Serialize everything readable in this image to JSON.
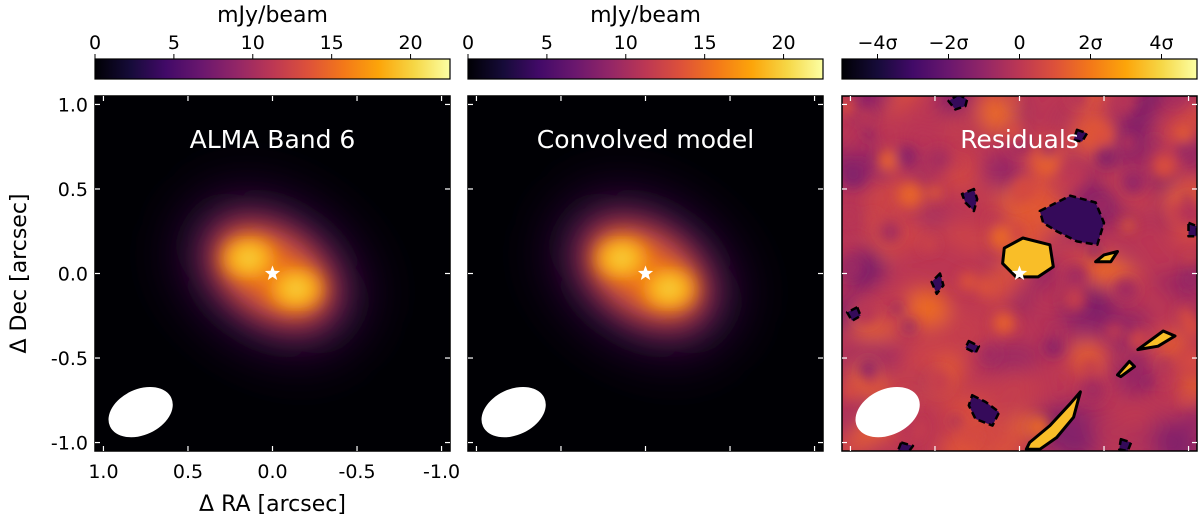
{
  "chart_data": [
    {
      "type": "heatmap",
      "panel_label": "ALMA Band 6",
      "colormap": "inferno",
      "colorbar": {
        "label": "mJy/beam",
        "range": [
          0,
          22.5
        ],
        "ticks": [
          0,
          5,
          10,
          15,
          20
        ],
        "tick_labels": [
          "0",
          "5",
          "10",
          "15",
          "20"
        ]
      },
      "xlabel": "Δ RA [arcsec]",
      "ylabel": "Δ Dec [arcsec]",
      "xlim": [
        1.05,
        -1.05
      ],
      "ylim": [
        -1.05,
        1.05
      ],
      "x_ticks": [
        1.0,
        0.5,
        0.0,
        -0.5,
        -1.0
      ],
      "x_tick_labels": [
        "1.0",
        "0.5",
        "0.0",
        "-0.5",
        "-1.0"
      ],
      "y_ticks": [
        1.0,
        0.5,
        0.0,
        -0.5,
        -1.0
      ],
      "y_tick_labels": [
        "1.0",
        "0.5",
        "0.0",
        "-0.5",
        "-1.0"
      ],
      "emission_peaks": [
        {
          "x": 0.14,
          "y": 0.09,
          "value": 22
        },
        {
          "x": -0.14,
          "y": -0.09,
          "value": 22
        }
      ],
      "star_position": {
        "x": 0.0,
        "y": 0.0
      },
      "beam": {
        "x": 0.78,
        "y": -0.82,
        "major": 0.4,
        "minor": 0.27,
        "pa_deg": 25
      }
    },
    {
      "type": "heatmap",
      "panel_label": "Convolved model",
      "colormap": "inferno",
      "colorbar": {
        "label": "mJy/beam",
        "range": [
          0,
          22.5
        ],
        "ticks": [
          0,
          5,
          10,
          15,
          20
        ],
        "tick_labels": [
          "0",
          "5",
          "10",
          "15",
          "20"
        ]
      },
      "xlim": [
        1.05,
        -1.05
      ],
      "ylim": [
        -1.05,
        1.05
      ],
      "emission_peaks": [
        {
          "x": 0.14,
          "y": 0.09,
          "value": 22
        },
        {
          "x": -0.14,
          "y": -0.09,
          "value": 22
        }
      ],
      "star_position": {
        "x": 0.0,
        "y": 0.0
      },
      "beam": {
        "x": 0.78,
        "y": -0.82,
        "major": 0.4,
        "minor": 0.27,
        "pa_deg": 25
      }
    },
    {
      "type": "heatmap",
      "panel_label": "Residuals",
      "colormap": "inferno",
      "colorbar": {
        "label": "",
        "range": [
          -5,
          5
        ],
        "ticks": [
          -4,
          -2,
          0,
          2,
          4
        ],
        "tick_labels": [
          "−4σ",
          "−2σ",
          "0",
          "2σ",
          "4σ"
        ]
      },
      "xlim": [
        1.05,
        -1.05
      ],
      "ylim": [
        -1.05,
        1.05
      ],
      "contour_levels_sigma": [
        -3,
        3
      ],
      "positive_contours": [
        {
          "x": [
            0.09,
            -0.02,
            -0.18,
            -0.2,
            -0.11,
            0.02,
            0.1,
            0.09
          ],
          "y": [
            0.15,
            0.21,
            0.17,
            0.04,
            -0.02,
            -0.02,
            0.06,
            0.15
          ]
        },
        {
          "x": [
            -0.45,
            -0.5,
            -0.58,
            -0.54,
            -0.45
          ],
          "y": [
            0.07,
            0.11,
            0.13,
            0.07,
            0.07
          ]
        },
        {
          "x": [
            -0.7,
            -0.85,
            -0.92,
            -0.82,
            -0.7
          ],
          "y": [
            -0.45,
            -0.34,
            -0.37,
            -0.43,
            -0.45
          ]
        },
        {
          "x": [
            -0.58,
            -0.65,
            -0.68,
            -0.6,
            -0.58
          ],
          "y": [
            -0.6,
            -0.52,
            -0.55,
            -0.61,
            -0.6
          ]
        },
        {
          "x": [
            -0.06,
            -0.18,
            -0.3,
            -0.36,
            -0.32,
            -0.22,
            -0.12,
            -0.04,
            -0.06
          ],
          "y": [
            -1.0,
            -0.9,
            -0.77,
            -0.7,
            -0.85,
            -0.97,
            -1.04,
            -1.04,
            -1.0
          ]
        }
      ],
      "negative_contours": [
        {
          "x": [
            -0.12,
            -0.3,
            -0.45,
            -0.5,
            -0.46,
            -0.34,
            -0.22,
            -0.14,
            -0.12
          ],
          "y": [
            0.37,
            0.46,
            0.42,
            0.3,
            0.17,
            0.19,
            0.25,
            0.3,
            0.37
          ]
        },
        {
          "x": [
            0.27,
            0.34,
            0.32,
            0.27,
            0.25,
            0.27
          ],
          "y": [
            0.5,
            0.47,
            0.42,
            0.37,
            0.44,
            0.5
          ]
        },
        {
          "x": [
            0.36,
            0.42,
            0.38,
            0.32,
            0.31,
            0.36
          ],
          "y": [
            1.06,
            1.02,
            0.97,
            0.99,
            1.03,
            1.06
          ]
        },
        {
          "x": [
            -0.34,
            -0.4,
            -0.37,
            -0.32,
            -0.34
          ],
          "y": [
            0.85,
            0.83,
            0.78,
            0.79,
            0.85
          ]
        },
        {
          "x": [
            -1.0,
            -1.05,
            -1.05,
            -1.0,
            -1.0
          ],
          "y": [
            0.3,
            0.28,
            0.22,
            0.22,
            0.3
          ]
        },
        {
          "x": [
            0.47,
            0.52,
            0.49,
            0.45,
            0.47
          ],
          "y": [
            0.0,
            -0.05,
            -0.12,
            -0.07,
            0.0
          ]
        },
        {
          "x": [
            0.3,
            0.24,
            0.26,
            0.32,
            0.3
          ],
          "y": [
            -0.4,
            -0.43,
            -0.47,
            -0.44,
            -0.4
          ]
        },
        {
          "x": [
            0.96,
            1.02,
            0.99,
            0.94,
            0.96
          ],
          "y": [
            -0.2,
            -0.23,
            -0.28,
            -0.25,
            -0.2
          ]
        },
        {
          "x": [
            0.28,
            0.2,
            0.12,
            0.16,
            0.26,
            0.3,
            0.28
          ],
          "y": [
            -0.72,
            -0.76,
            -0.82,
            -0.9,
            -0.86,
            -0.78,
            -0.72
          ]
        },
        {
          "x": [
            0.7,
            0.63,
            0.66,
            0.72,
            0.7
          ],
          "y": [
            -1.0,
            -1.02,
            -1.06,
            -1.05,
            -1.0
          ]
        },
        {
          "x": [
            -0.6,
            -0.66,
            -0.64,
            -0.59,
            -0.6
          ],
          "y": [
            -0.98,
            -1.0,
            -1.05,
            -1.04,
            -0.98
          ]
        }
      ],
      "star_position": {
        "x": 0.0,
        "y": 0.0
      },
      "beam": {
        "x": 0.78,
        "y": -0.82,
        "major": 0.4,
        "minor": 0.27,
        "pa_deg": 25
      }
    }
  ]
}
